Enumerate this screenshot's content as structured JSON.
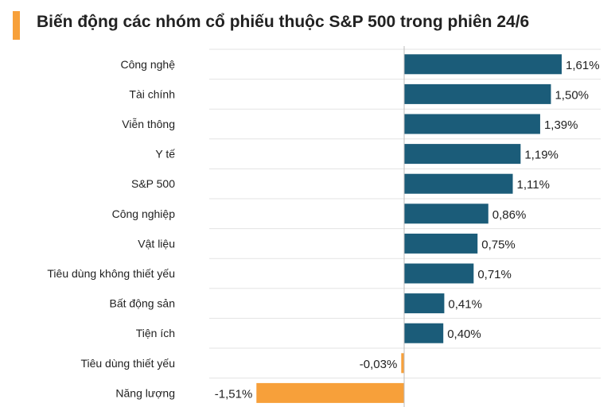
{
  "title": "Biến động các nhóm cổ phiếu thuộc S&P 500 trong phiên 24/6",
  "colors": {
    "accent": "#f7a03a",
    "positive": "#1b5c79",
    "negative": "#f7a03a",
    "grid": "#e3e3e3",
    "axis": "#bdbdbd"
  },
  "chart_data": {
    "type": "bar",
    "orientation": "horizontal",
    "categories": [
      "Công nghệ",
      "Tài chính",
      "Viễn thông",
      "Y tế",
      "S&P 500",
      "Công nghiệp",
      "Vật liệu",
      "Tiêu dùng không thiết yếu",
      "Bất động sản",
      "Tiện ích",
      "Tiêu dùng thiết yếu",
      "Năng lượng"
    ],
    "values": [
      1.61,
      1.5,
      1.39,
      1.19,
      1.11,
      0.86,
      0.75,
      0.71,
      0.41,
      0.4,
      -0.03,
      -1.51
    ],
    "value_labels": [
      "1,61%",
      "1,50%",
      "1,39%",
      "1,19%",
      "1,11%",
      "0,86%",
      "0,75%",
      "0,71%",
      "0,41%",
      "0,40%",
      "-0,03%",
      "-1,51%"
    ],
    "title": "Biến động các nhóm cổ phiếu thuộc S&P 500 trong phiên 24/6",
    "xlabel": "",
    "ylabel": "",
    "xlim": [
      -1.51,
      1.61
    ],
    "grid": true,
    "legend": "none"
  }
}
